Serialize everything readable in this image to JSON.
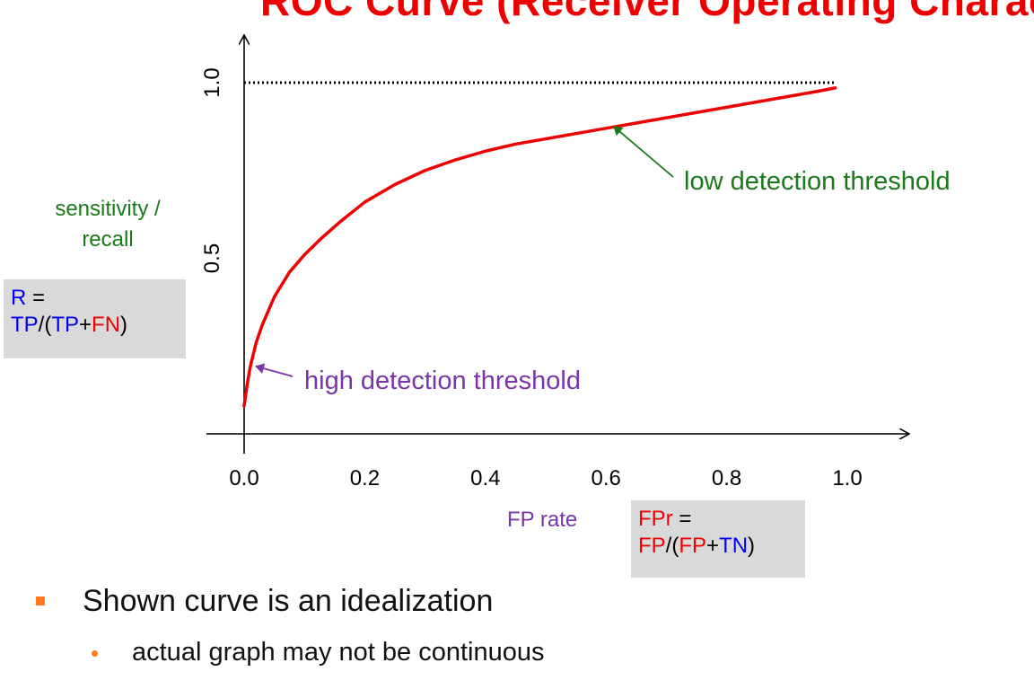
{
  "slide": {
    "title_fragment": "ROC Curve (Receiver Operating Characteristic)",
    "recall_formula": {
      "lhs": "R",
      "eq": " =",
      "tp": "TP",
      "open": "/(",
      "tp2": "TP",
      "plus": "+",
      "fn": "FN",
      "close": ")"
    },
    "fpr_formula": {
      "lhs": "FPr",
      "eq": " =",
      "fp": "FP",
      "open": "/(",
      "fp2": "FP",
      "plus": "+",
      "tn": "TN",
      "close": ")"
    },
    "ylabel_line1": "sensitivity /",
    "ylabel_line2": "recall",
    "xlabel": "FP rate",
    "bullet1": "Shown curve is an idealization",
    "bullet2": "actual graph may not be continuous"
  },
  "chart_data": {
    "type": "line",
    "x_ticks": [
      "0.0",
      "0.2",
      "0.4",
      "0.6",
      "0.8",
      "1.0"
    ],
    "y_ticks": [
      "0.5",
      "1.0"
    ],
    "xlim": [
      0,
      1
    ],
    "ylim": [
      0,
      1
    ],
    "series": [
      {
        "color": "#ee0000",
        "style": "solid",
        "x": [
          0.0,
          0.005,
          0.01,
          0.02,
          0.03,
          0.05,
          0.075,
          0.1,
          0.13,
          0.16,
          0.2,
          0.25,
          0.3,
          0.35,
          0.4,
          0.45,
          0.5,
          0.55,
          0.6,
          0.65,
          0.7,
          0.75,
          0.8,
          0.85,
          0.9,
          0.95,
          0.98
        ],
        "y": [
          0.08,
          0.14,
          0.19,
          0.26,
          0.31,
          0.39,
          0.46,
          0.51,
          0.56,
          0.605,
          0.66,
          0.71,
          0.75,
          0.78,
          0.805,
          0.825,
          0.84,
          0.855,
          0.87,
          0.885,
          0.9,
          0.915,
          0.93,
          0.945,
          0.96,
          0.975,
          0.985
        ]
      },
      {
        "color": "#000000",
        "style": "dotted",
        "x": [
          0.0,
          0.98
        ],
        "y": [
          1.0,
          1.0
        ]
      }
    ],
    "annotations": [
      {
        "text": "low detection threshold",
        "color": "#1a7a1a",
        "x": 0.61,
        "y": 0.88
      },
      {
        "text": "high detection threshold",
        "color": "#7a35a8",
        "x": 0.015,
        "y": 0.2
      }
    ],
    "grid": false
  }
}
